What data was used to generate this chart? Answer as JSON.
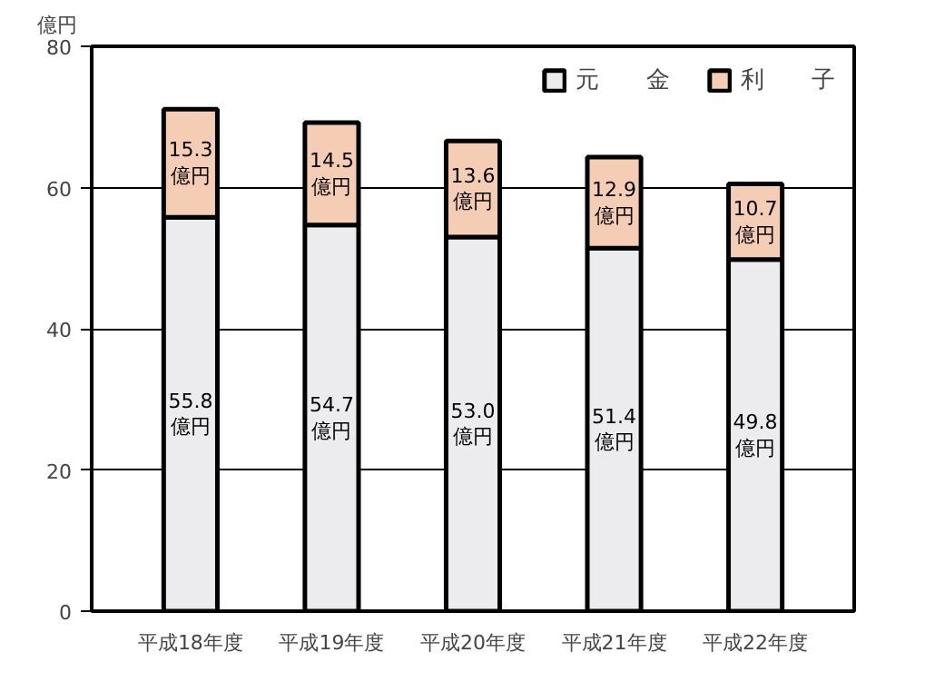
{
  "chart_data": {
    "type": "bar",
    "stacked": true,
    "ylabel": "億円",
    "categories": [
      "平成18年度",
      "平成19年度",
      "平成20年度",
      "平成21年度",
      "平成22年度"
    ],
    "series": [
      {
        "name": "元　　金",
        "color": "#ececee",
        "values": [
          55.8,
          54.7,
          53.0,
          51.4,
          49.8
        ],
        "value_labels": [
          "55.8\n億円",
          "54.7\n億円",
          "53.0\n億円",
          "51.4\n億円",
          "49.8\n億円"
        ]
      },
      {
        "name": "利　　子",
        "color": "#f5cdb4",
        "values": [
          15.3,
          14.5,
          13.6,
          12.9,
          10.7
        ],
        "value_labels": [
          "15.3\n億円",
          "14.5\n億円",
          "13.6\n億円",
          "12.9\n億円",
          "10.7\n億円"
        ]
      }
    ],
    "ylim": [
      0,
      80
    ],
    "yticks": [
      0,
      20,
      40,
      60,
      80
    ],
    "grid": "y",
    "legend": "top right"
  }
}
